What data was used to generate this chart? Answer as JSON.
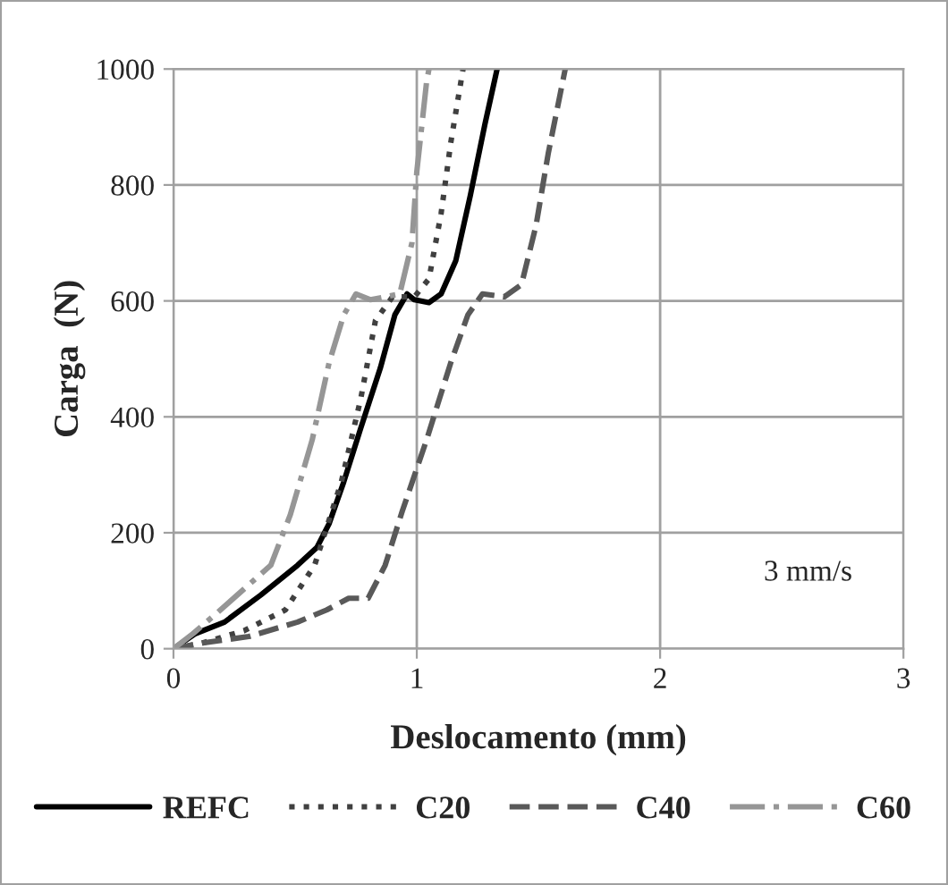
{
  "chart_data": {
    "type": "line",
    "xlabel": "Deslocamento (mm)",
    "ylabel": "Carga  (N)",
    "xlim": [
      0,
      3
    ],
    "ylim": [
      0,
      1000
    ],
    "xticks": [
      0,
      1,
      2,
      3
    ],
    "yticks": [
      0,
      200,
      400,
      600,
      800,
      1000
    ],
    "grid": true,
    "legend": "bottom",
    "annotations": [
      "3 mm/s"
    ],
    "series": [
      {
        "name": "REFC",
        "color": "#000000",
        "line_style": "solid",
        "x": [
          0,
          0.09,
          0.21,
          0.36,
          0.51,
          0.59,
          0.64,
          0.7,
          0.77,
          0.85,
          0.91,
          0.96,
          0.99,
          1.05,
          1.1,
          1.16,
          1.22,
          1.28,
          1.33
        ],
        "values": [
          0,
          26,
          46,
          93,
          144,
          175,
          216,
          288,
          381,
          484,
          576,
          612,
          602,
          597,
          612,
          669,
          782,
          905,
          1000
        ]
      },
      {
        "name": "C20",
        "color": "#404040",
        "line_style": "dotted",
        "x": [
          0,
          0.12,
          0.29,
          0.46,
          0.58,
          0.69,
          0.77,
          0.83,
          0.9,
          0.99,
          1.05,
          1.1,
          1.14,
          1.19
        ],
        "values": [
          0,
          10,
          31,
          67,
          144,
          288,
          432,
          566,
          607,
          607,
          638,
          751,
          874,
          1000
        ]
      },
      {
        "name": "C40",
        "color": "#595959",
        "line_style": "dashed",
        "x": [
          0,
          0.12,
          0.31,
          0.51,
          0.63,
          0.72,
          0.8,
          0.87,
          0.94,
          1.04,
          1.14,
          1.21,
          1.27,
          1.36,
          1.43,
          1.49,
          1.54,
          1.61
        ],
        "values": [
          0,
          10,
          21,
          46,
          67,
          87,
          87,
          144,
          237,
          360,
          494,
          576,
          612,
          607,
          628,
          730,
          854,
          1000
        ]
      },
      {
        "name": "C60",
        "color": "#969696",
        "line_style": "dashdot",
        "x": [
          0,
          0.08,
          0.18,
          0.29,
          0.4,
          0.48,
          0.57,
          0.64,
          0.7,
          0.75,
          0.81,
          0.93,
          0.98,
          1.0,
          1.04,
          1.05
        ],
        "values": [
          0,
          26,
          62,
          103,
          144,
          231,
          360,
          494,
          576,
          612,
          602,
          612,
          700,
          823,
          977,
          1000
        ]
      }
    ]
  }
}
